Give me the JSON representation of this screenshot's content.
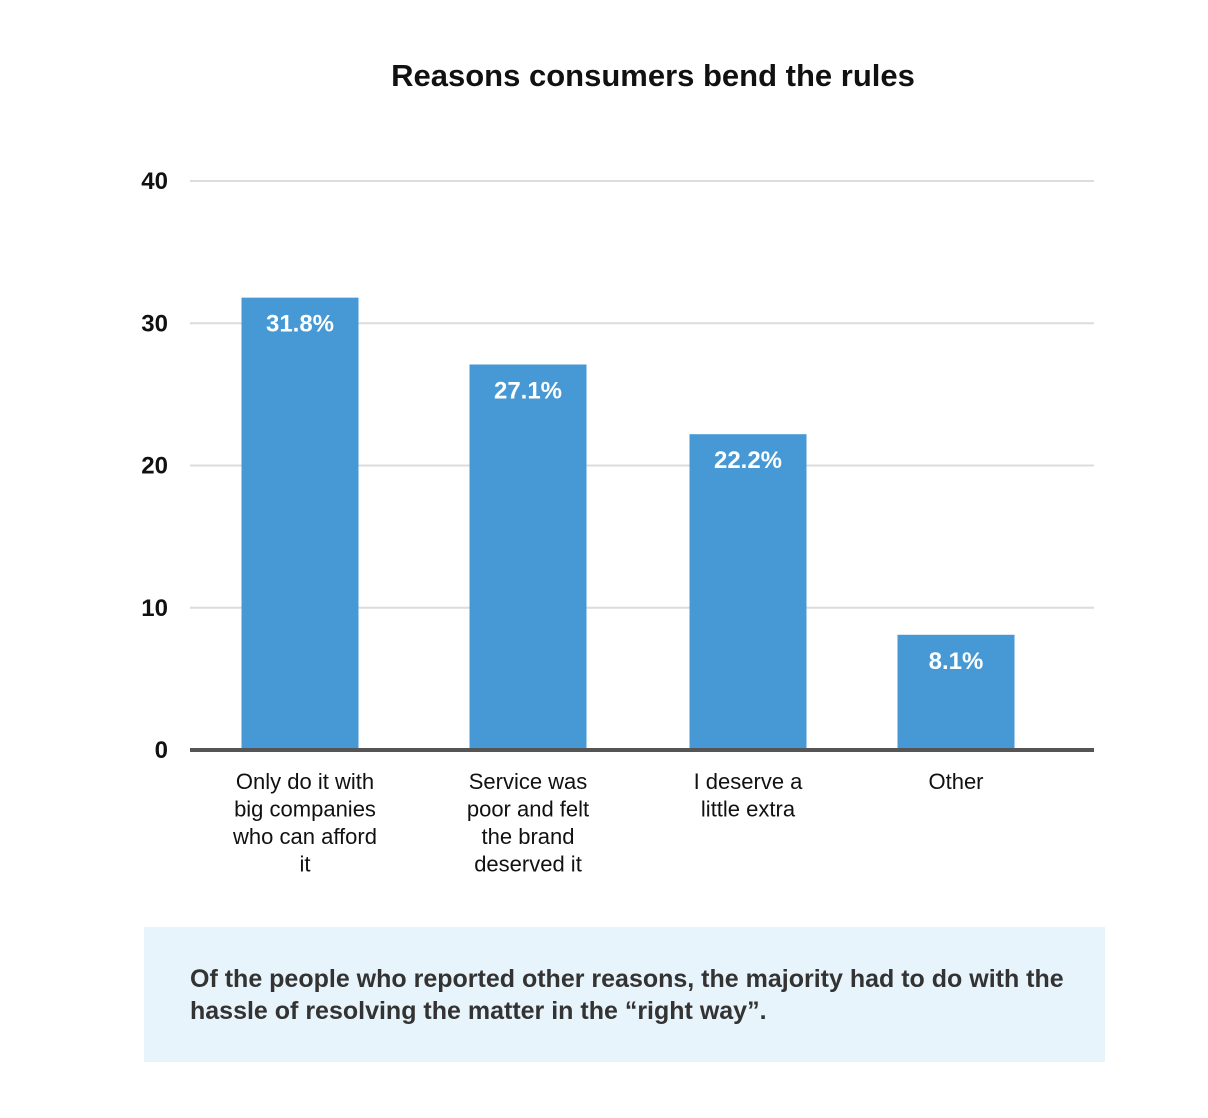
{
  "chart_data": {
    "type": "bar",
    "title": "Reasons consumers bend the rules",
    "categories": [
      "Only do it with big companies who can afford it",
      "Service was poor and felt the brand deserved it",
      "I deserve a little extra",
      "Other"
    ],
    "category_lines": [
      [
        "Only do it with",
        "big companies",
        "who can afford",
        "it"
      ],
      [
        "Service was",
        "poor and felt",
        "the brand",
        "deserved it"
      ],
      [
        "I deserve a",
        "little extra"
      ],
      [
        "Other"
      ]
    ],
    "values": [
      31.8,
      27.1,
      22.2,
      8.1
    ],
    "data_labels": [
      "31.8%",
      "27.1%",
      "22.2%",
      "8.1%"
    ],
    "yticks": [
      "0",
      "10",
      "20",
      "30",
      "40"
    ],
    "ylim": [
      0,
      40
    ],
    "xlabel": "",
    "ylabel": "",
    "grid": true,
    "bar_color": "#4699d4"
  },
  "caption": "Of the people who reported other reasons, the majority had to do with the hassle of resolving the matter in the “right way”."
}
